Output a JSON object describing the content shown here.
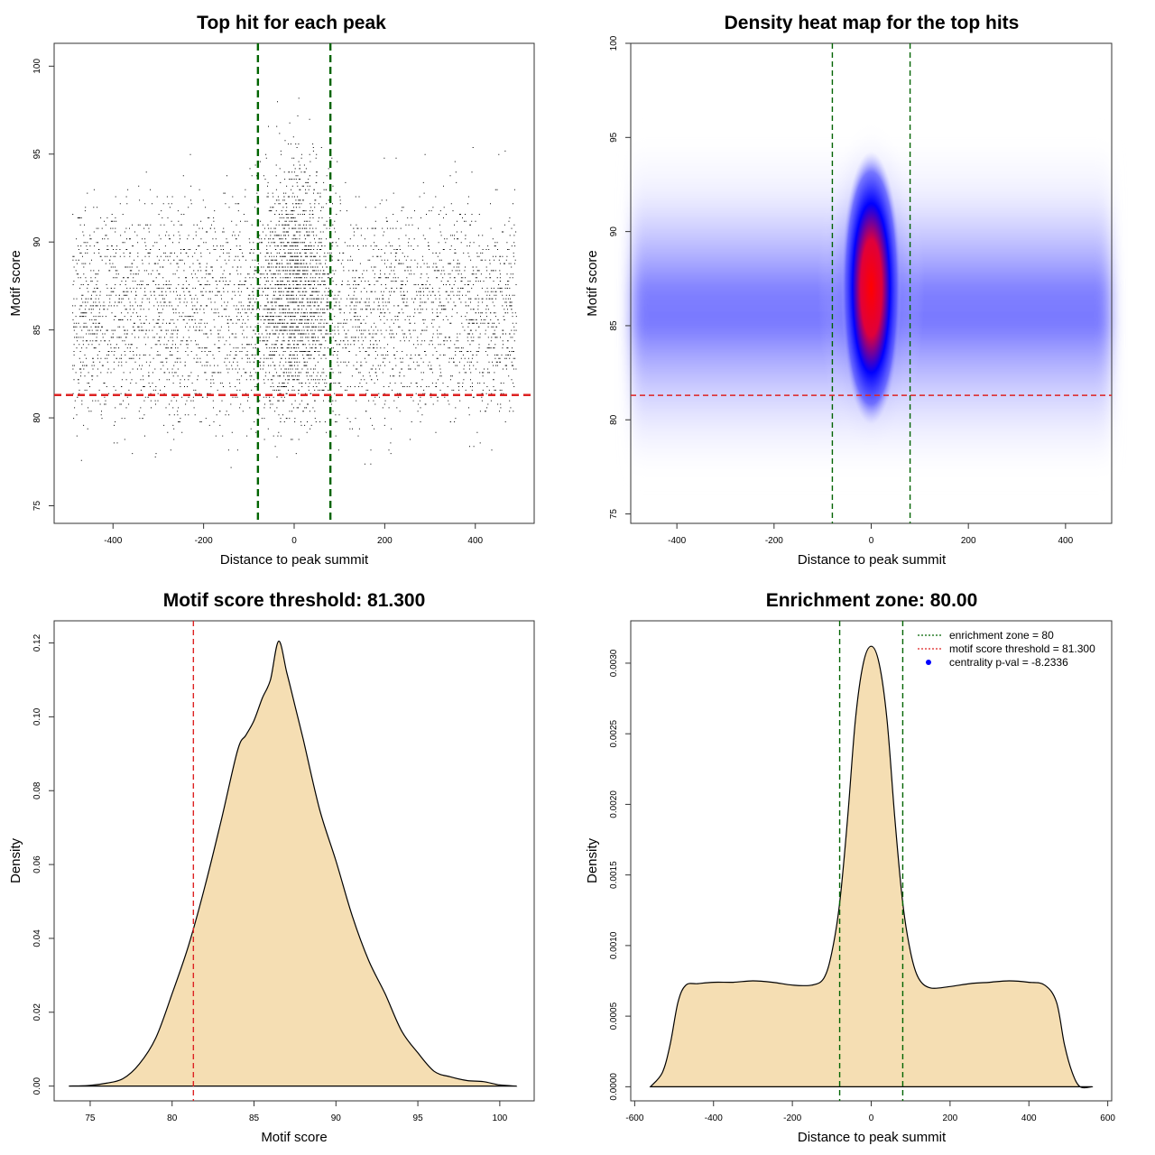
{
  "chart_data": [
    {
      "type": "scatter",
      "title": "Top hit for each peak",
      "xlabel": "Distance to peak summit",
      "ylabel": "Motif score",
      "xlim": [
        -530,
        530
      ],
      "ylim": [
        74,
        101.3
      ],
      "xticks": [
        -400,
        -200,
        0,
        200,
        400
      ],
      "xtick_labels": [
        "-400",
        "-200",
        "0",
        "200",
        "400"
      ],
      "yticks": [
        75,
        80,
        85,
        90,
        95,
        100
      ],
      "ytick_labels": [
        "75",
        "80",
        "85",
        "90",
        "95",
        "100"
      ],
      "vlines": [
        -80,
        80
      ],
      "hlines": [
        81.3
      ],
      "line_colors": {
        "enrichment": "#006400",
        "threshold": "#dd2222"
      },
      "point_color": "#000000",
      "n_points_approx": 14000,
      "x_range_points": [
        -490,
        490
      ],
      "score_mode": 86.5,
      "score_range": [
        75,
        100
      ]
    },
    {
      "type": "heatmap",
      "title": "Density heat map for the top hits",
      "xlabel": "Distance to peak summit",
      "ylabel": "Motif score",
      "xlim": [
        -495,
        495
      ],
      "ylim": [
        74.5,
        100
      ],
      "xticks": [
        -400,
        -200,
        0,
        200,
        400
      ],
      "xtick_labels": [
        "-400",
        "-200",
        "0",
        "200",
        "400"
      ],
      "yticks": [
        75,
        80,
        85,
        90,
        95,
        100
      ],
      "ytick_labels": [
        "75",
        "80",
        "85",
        "90",
        "95",
        "100"
      ],
      "vlines": [
        -80,
        80
      ],
      "hlines": [
        81.3
      ],
      "colors": {
        "low": "#ffffff",
        "mid": "#0000ff",
        "high": "#ff0000"
      },
      "hotspot": {
        "x": 0,
        "y": 87
      },
      "background_band_score": 86.5
    },
    {
      "type": "area",
      "title": "Motif score threshold: 81.300",
      "xlabel": "Motif score",
      "ylabel": "Density",
      "xlim": [
        72.8,
        102.1
      ],
      "ylim": [
        -0.004,
        0.126
      ],
      "xticks": [
        75,
        80,
        85,
        90,
        95,
        100
      ],
      "xtick_labels": [
        "75",
        "80",
        "85",
        "90",
        "95",
        "100"
      ],
      "yticks": [
        0,
        0.02,
        0.04,
        0.06,
        0.08,
        0.1,
        0.12
      ],
      "ytick_labels": [
        "0.00",
        "0.02",
        "0.04",
        "0.06",
        "0.08",
        "0.10",
        "0.12"
      ],
      "fill_color": "#f5deb3",
      "vlines": [
        81.3
      ],
      "x": [
        73.7,
        75,
        76,
        77,
        78,
        79,
        80,
        81,
        82,
        83,
        84,
        84.5,
        85,
        85.5,
        86,
        86.5,
        87,
        87.5,
        88,
        89,
        90,
        91,
        92,
        93,
        94,
        95,
        96,
        97,
        98,
        99,
        100,
        101
      ],
      "y": [
        0,
        0.0002,
        0.0008,
        0.002,
        0.006,
        0.013,
        0.025,
        0.038,
        0.054,
        0.072,
        0.091,
        0.095,
        0.099,
        0.105,
        0.11,
        0.1205,
        0.112,
        0.103,
        0.094,
        0.075,
        0.061,
        0.046,
        0.034,
        0.025,
        0.015,
        0.009,
        0.004,
        0.0025,
        0.0015,
        0.0012,
        0.0003,
        0
      ]
    },
    {
      "type": "area",
      "title": "Enrichment zone: 80.00",
      "xlabel": "Distance to peak summit",
      "ylabel": "Density",
      "xlim": [
        -610,
        610
      ],
      "ylim": [
        -0.0001,
        0.0033
      ],
      "xticks": [
        -600,
        -400,
        -200,
        0,
        200,
        400,
        600
      ],
      "xtick_labels": [
        "-600",
        "-400",
        "-200",
        "0",
        "200",
        "400",
        "600"
      ],
      "yticks": [
        0,
        0.0005,
        0.001,
        0.0015,
        0.002,
        0.0025,
        0.003
      ],
      "ytick_labels": [
        "0.0000",
        "0.0005",
        "0.0010",
        "0.0015",
        "0.0020",
        "0.0025",
        "0.0030"
      ],
      "fill_color": "#f5deb3",
      "vlines": [
        -80,
        80
      ],
      "x": [
        -560,
        -530,
        -510,
        -490,
        -470,
        -440,
        -400,
        -350,
        -300,
        -250,
        -200,
        -150,
        -120,
        -100,
        -80,
        -60,
        -40,
        -20,
        0,
        20,
        40,
        60,
        80,
        100,
        120,
        150,
        200,
        250,
        300,
        350,
        400,
        440,
        470,
        490,
        510,
        530,
        560
      ],
      "y": [
        0,
        0.0001,
        0.0003,
        0.0006,
        0.00072,
        0.00073,
        0.00074,
        0.00074,
        0.00075,
        0.00074,
        0.00072,
        0.00072,
        0.00077,
        0.00095,
        0.0013,
        0.0019,
        0.0026,
        0.003,
        0.00312,
        0.003,
        0.0026,
        0.0019,
        0.0013,
        0.00095,
        0.00077,
        0.0007,
        0.00071,
        0.00073,
        0.00074,
        0.00075,
        0.00074,
        0.00072,
        0.0006,
        0.0003,
        0.0001,
        0,
        0
      ],
      "legend_position": "top-right",
      "legend": [
        {
          "label": "enrichment zone = 80",
          "color": "#006400",
          "style": "dotted-line"
        },
        {
          "label": "motif score threshold = 81.300",
          "color": "#dd2222",
          "style": "dotted-line"
        },
        {
          "label": "centrality p-val = -8.2336",
          "color": "#0000ff",
          "style": "point"
        }
      ]
    }
  ]
}
